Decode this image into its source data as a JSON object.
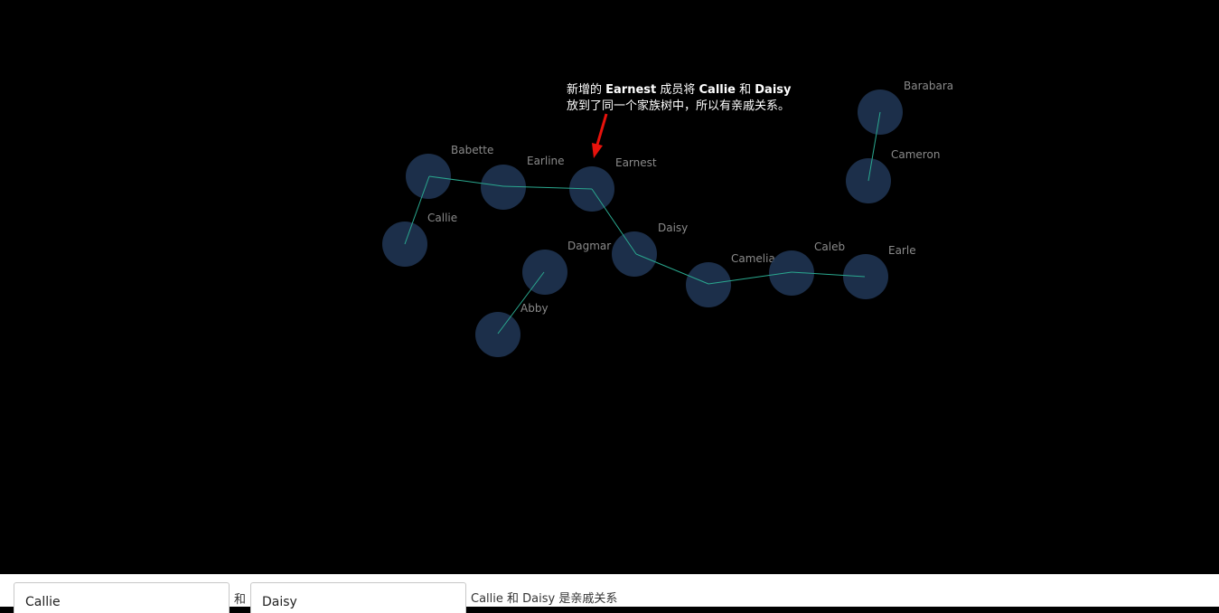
{
  "colors": {
    "background": "#000000",
    "node_fill": "#1e3350",
    "edge": "#2aa88f",
    "label": "#8a8a8a",
    "arrow": "#e8120c"
  },
  "annotation": {
    "line1_prefix": "新增的 ",
    "line1_name1": "Earnest",
    "line1_mid": " 成员将 ",
    "line1_name2": "Callie",
    "line1_and": " 和 ",
    "line1_name3": "Daisy",
    "line2": "放到了同一个家族树中，所以有亲戚关系。"
  },
  "graph": {
    "nodes": [
      "Babette",
      "Earline",
      "Earnest",
      "Callie",
      "Daisy",
      "Dagmar",
      "Abby",
      "Camelia",
      "Caleb",
      "Earle",
      "Barabara",
      "Cameron"
    ],
    "edges": [
      [
        "Callie",
        "Babette"
      ],
      [
        "Babette",
        "Earline"
      ],
      [
        "Earline",
        "Earnest"
      ],
      [
        "Earnest",
        "Daisy"
      ],
      [
        "Daisy",
        "Camelia"
      ],
      [
        "Camelia",
        "Caleb"
      ],
      [
        "Caleb",
        "Earle"
      ],
      [
        "Dagmar",
        "Abby"
      ],
      [
        "Barabara",
        "Cameron"
      ]
    ]
  },
  "form": {
    "person_a": "Callie",
    "conjunction": "和",
    "person_b": "Daisy",
    "result_name_a": "Callie",
    "result_and": " 和 ",
    "result_name_b": "Daisy",
    "result_suffix": " 是亲戚关系"
  }
}
